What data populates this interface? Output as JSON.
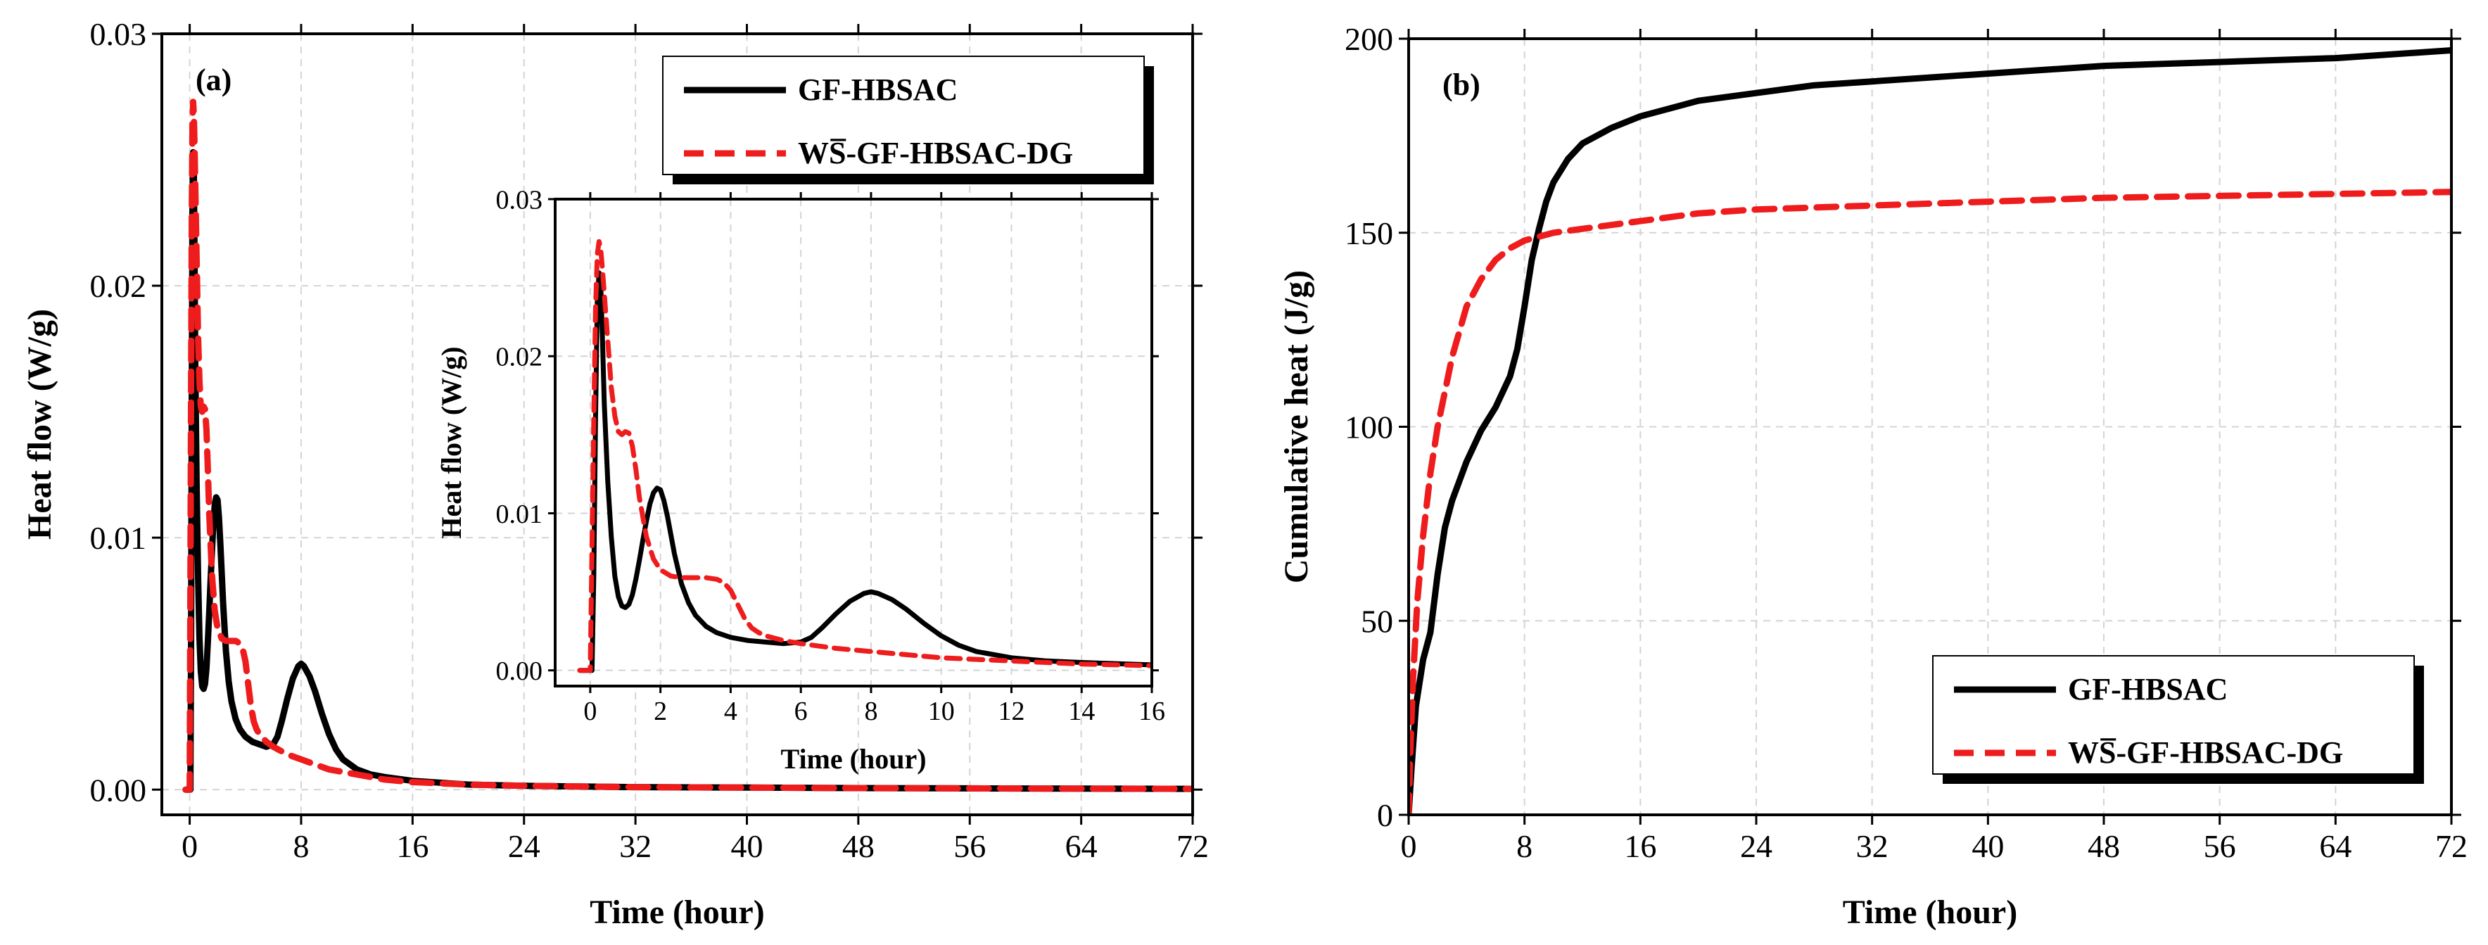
{
  "colors": {
    "series_1": "#000000",
    "series_2": "#ee1c1c"
  },
  "chart_data": [
    {
      "type": "line",
      "panel": "(a)",
      "xlabel": "Time (hour)",
      "ylabel": "Heat flow  (W/g)",
      "xlim": [
        -2,
        72
      ],
      "ylim": [
        -0.001,
        0.03
      ],
      "xticks": [
        0,
        8,
        16,
        24,
        32,
        40,
        48,
        56,
        64,
        72
      ],
      "yticks": [
        0.0,
        0.01,
        0.02,
        0.03
      ],
      "ytick_labels": [
        "0.00",
        "0.01",
        "0.02",
        "0.03"
      ],
      "grid": true,
      "legend_position": "top-right",
      "series": [
        {
          "name": "GF-HBSAC",
          "style": "solid",
          "x": [
            -0.3,
            0.05,
            0.1,
            0.15,
            0.2,
            0.25,
            0.3,
            0.35,
            0.4,
            0.5,
            0.6,
            0.7,
            0.8,
            0.9,
            1.0,
            1.1,
            1.2,
            1.3,
            1.4,
            1.5,
            1.6,
            1.7,
            1.8,
            1.9,
            2.0,
            2.1,
            2.2,
            2.3,
            2.4,
            2.6,
            2.8,
            3.0,
            3.3,
            3.6,
            4.0,
            4.5,
            5.0,
            5.5,
            6.0,
            6.3,
            6.6,
            7.0,
            7.4,
            7.8,
            8.0,
            8.2,
            8.6,
            9.0,
            9.5,
            10.0,
            10.5,
            11.0,
            12.0,
            13.0,
            14.0,
            16.0,
            20.0,
            24.0,
            32.0,
            40.0,
            48.0,
            56.0,
            64.0,
            72.0
          ],
          "y": [
            0.0,
            0.0,
            0.006,
            0.016,
            0.0235,
            0.0253,
            0.0245,
            0.021,
            0.017,
            0.012,
            0.0085,
            0.006,
            0.0047,
            0.0041,
            0.004,
            0.0042,
            0.0048,
            0.0058,
            0.007,
            0.0083,
            0.0095,
            0.0106,
            0.0113,
            0.0116,
            0.0115,
            0.0108,
            0.0098,
            0.0086,
            0.0074,
            0.0055,
            0.0043,
            0.0035,
            0.0028,
            0.0024,
            0.0021,
            0.0019,
            0.0018,
            0.0017,
            0.0018,
            0.0021,
            0.0027,
            0.0036,
            0.0044,
            0.0049,
            0.005,
            0.0049,
            0.0045,
            0.0039,
            0.003,
            0.0022,
            0.0016,
            0.0012,
            0.0008,
            0.0006,
            0.0005,
            0.00035,
            0.0002,
            0.00015,
            0.0001,
            8e-05,
            6e-05,
            5e-05,
            4e-05,
            3e-05
          ]
        },
        {
          "name": "WS̅-GF-HBSAC-DG",
          "style": "dashed",
          "x": [
            -0.3,
            0.0,
            0.05,
            0.1,
            0.15,
            0.2,
            0.25,
            0.3,
            0.35,
            0.4,
            0.5,
            0.6,
            0.7,
            0.8,
            0.9,
            1.0,
            1.1,
            1.2,
            1.3,
            1.4,
            1.6,
            1.8,
            2.0,
            2.3,
            2.6,
            3.0,
            3.3,
            3.6,
            3.8,
            4.0,
            4.2,
            4.4,
            4.6,
            4.8,
            5.0,
            5.5,
            6.0,
            7.0,
            8.0,
            9.0,
            10.0,
            11.0,
            12.0,
            14.0,
            16.0,
            20.0,
            24.0,
            32.0,
            40.0,
            48.0,
            56.0,
            64.0,
            72.0
          ],
          "y": [
            0.0,
            0.0,
            0.008,
            0.016,
            0.023,
            0.0265,
            0.0273,
            0.0268,
            0.0255,
            0.024,
            0.021,
            0.018,
            0.0162,
            0.0152,
            0.015,
            0.0152,
            0.0151,
            0.0143,
            0.0128,
            0.011,
            0.0085,
            0.0071,
            0.0064,
            0.006,
            0.0059,
            0.0059,
            0.0059,
            0.0058,
            0.0056,
            0.0051,
            0.0042,
            0.0033,
            0.0027,
            0.0024,
            0.0022,
            0.0019,
            0.0017,
            0.0014,
            0.0012,
            0.001,
            0.0008,
            0.0007,
            0.0006,
            0.0004,
            0.0003,
            0.0002,
            0.00015,
            0.0001,
            8e-05,
            6e-05,
            5e-05,
            4e-05,
            3e-05
          ]
        }
      ]
    },
    {
      "type": "line",
      "panel": "(a) inset",
      "xlabel": "Time (hour)",
      "ylabel": "Heat flow  (W/g)",
      "xlim": [
        -1,
        16
      ],
      "ylim": [
        -0.001,
        0.03
      ],
      "xticks": [
        0,
        2,
        4,
        6,
        8,
        10,
        12,
        14,
        16
      ],
      "yticks": [
        0.0,
        0.01,
        0.02,
        0.03
      ],
      "ytick_labels": [
        "0.00",
        "0.01",
        "0.02",
        "0.03"
      ],
      "grid": true,
      "series_ref": [
        "GF-HBSAC",
        "WS̅-GF-HBSAC-DG"
      ]
    },
    {
      "type": "line",
      "panel": "(b)",
      "xlabel": "Time (hour)",
      "ylabel": "Cumulative heat (J/g)",
      "xlim": [
        0,
        72
      ],
      "ylim": [
        0,
        200
      ],
      "xticks": [
        0,
        8,
        16,
        24,
        32,
        40,
        48,
        56,
        64,
        72
      ],
      "yticks": [
        0,
        50,
        100,
        150,
        200
      ],
      "ytick_labels": [
        "0",
        "50",
        "100",
        "150",
        "200"
      ],
      "grid": true,
      "legend_position": "bottom-right",
      "series": [
        {
          "name": "GF-HBSAC",
          "style": "solid",
          "x": [
            0,
            0.2,
            0.5,
            1.0,
            1.5,
            2.0,
            2.5,
            3.0,
            4.0,
            5.0,
            6.0,
            7.0,
            7.5,
            8.0,
            8.5,
            9.0,
            9.5,
            10.0,
            11.0,
            12.0,
            13.0,
            14.0,
            16.0,
            18.0,
            20.0,
            24.0,
            28.0,
            32.0,
            40.0,
            48.0,
            56.0,
            64.0,
            72.0
          ],
          "y": [
            0,
            12,
            28,
            40,
            47,
            62,
            74,
            81,
            91,
            99,
            105,
            113,
            120,
            131,
            143,
            151,
            158,
            163,
            169,
            173,
            175,
            177,
            180,
            182,
            184,
            186,
            188,
            189,
            191,
            193,
            194,
            195,
            197
          ]
        },
        {
          "name": "WS̅-GF-HBSAC-DG",
          "style": "dashed",
          "x": [
            0,
            0.1,
            0.3,
            0.6,
            1.0,
            1.5,
            2.0,
            3.0,
            4.0,
            5.0,
            6.0,
            7.0,
            8.0,
            9.0,
            10.0,
            12.0,
            14.0,
            16.0,
            20.0,
            24.0,
            32.0,
            40.0,
            48.0,
            56.0,
            64.0,
            72.0
          ],
          "y": [
            0,
            15,
            35,
            55,
            72,
            88,
            100,
            118,
            131,
            138,
            143,
            146,
            148,
            149,
            150,
            151,
            152,
            153,
            155,
            156,
            157,
            158,
            159,
            159.5,
            160,
            160.5
          ]
        }
      ]
    }
  ]
}
